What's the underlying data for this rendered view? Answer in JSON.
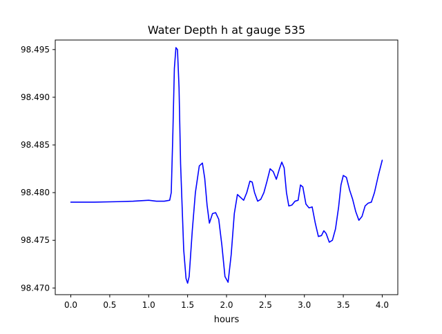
{
  "chart_data": {
    "type": "line",
    "title": "Water Depth h at gauge 535",
    "xlabel": "hours",
    "ylabel": "",
    "xlim": [
      -0.2,
      4.2
    ],
    "ylim": [
      98.4693,
      98.496
    ],
    "xticks": [
      0.0,
      0.5,
      1.0,
      1.5,
      2.0,
      2.5,
      3.0,
      3.5,
      4.0
    ],
    "xtick_labels": [
      "0.0",
      "0.5",
      "1.0",
      "1.5",
      "2.0",
      "2.5",
      "3.0",
      "3.5",
      "4.0"
    ],
    "yticks": [
      98.47,
      98.475,
      98.48,
      98.485,
      98.49,
      98.495
    ],
    "ytick_labels": [
      "98.470",
      "98.475",
      "98.480",
      "98.485",
      "98.490",
      "98.495"
    ],
    "grid": false,
    "series": [
      {
        "color": "#0000ff",
        "x": [
          0.0,
          0.3,
          0.6,
          0.8,
          1.0,
          1.1,
          1.2,
          1.27,
          1.29,
          1.31,
          1.33,
          1.35,
          1.37,
          1.39,
          1.41,
          1.45,
          1.48,
          1.5,
          1.52,
          1.56,
          1.6,
          1.65,
          1.69,
          1.72,
          1.75,
          1.78,
          1.82,
          1.86,
          1.9,
          1.94,
          1.98,
          2.02,
          2.06,
          2.1,
          2.14,
          2.18,
          2.22,
          2.26,
          2.3,
          2.33,
          2.36,
          2.4,
          2.44,
          2.48,
          2.52,
          2.56,
          2.6,
          2.64,
          2.68,
          2.71,
          2.74,
          2.77,
          2.8,
          2.84,
          2.88,
          2.92,
          2.95,
          2.98,
          3.02,
          3.06,
          3.1,
          3.14,
          3.18,
          3.22,
          3.25,
          3.28,
          3.32,
          3.36,
          3.4,
          3.44,
          3.47,
          3.5,
          3.54,
          3.58,
          3.62,
          3.66,
          3.7,
          3.74,
          3.78,
          3.82,
          3.86,
          3.9,
          3.95,
          4.0
        ],
        "y": [
          98.479,
          98.479,
          98.47905,
          98.4791,
          98.4792,
          98.4791,
          98.4791,
          98.4792,
          98.48,
          98.486,
          98.493,
          98.4952,
          98.495,
          98.491,
          98.483,
          98.474,
          98.471,
          98.4705,
          98.4712,
          98.476,
          98.48,
          98.4828,
          98.4831,
          98.4815,
          98.4787,
          98.4768,
          98.4778,
          98.4779,
          98.4772,
          98.4745,
          98.4712,
          98.4706,
          98.4735,
          98.4778,
          98.4798,
          98.4795,
          98.4792,
          98.48,
          98.4812,
          98.4811,
          98.48,
          98.4791,
          98.4793,
          98.48,
          98.4812,
          98.4825,
          98.4822,
          98.4814,
          98.4825,
          98.4832,
          98.4826,
          98.48,
          98.4786,
          98.4787,
          98.4791,
          98.4792,
          98.4808,
          98.4806,
          98.4788,
          98.4784,
          98.4785,
          98.4768,
          98.4754,
          98.4755,
          98.476,
          98.4757,
          98.4748,
          98.475,
          98.4762,
          98.4785,
          98.4808,
          98.4818,
          98.4816,
          98.4803,
          98.4793,
          98.478,
          98.4771,
          98.4775,
          98.4786,
          98.4789,
          98.479,
          98.48,
          98.4818,
          98.4834
        ]
      }
    ]
  }
}
